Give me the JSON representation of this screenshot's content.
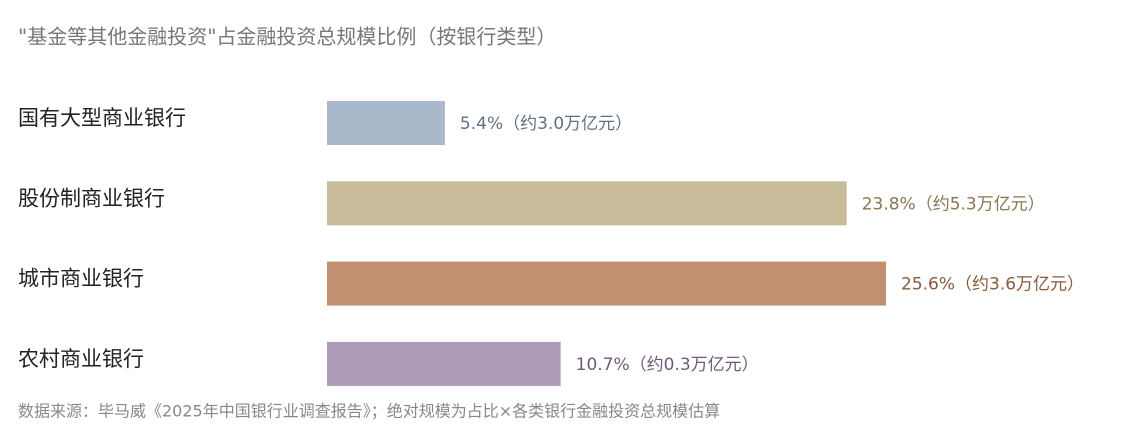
{
  "chart_data": {
    "type": "bar",
    "orientation": "horizontal",
    "title": "\"基金等其他金融投资\"占金融投资总规模比例（按银行类型）",
    "categories": [
      "国有大型商业银行",
      "股份制商业银行",
      "城市商业银行",
      "农村商业银行"
    ],
    "values": [
      5.4,
      23.8,
      25.6,
      10.7
    ],
    "value_labels": [
      "5.4%（约3.0万亿元）",
      "23.8%（约5.3万亿元）",
      "25.6%（约3.6万亿元）",
      "10.7%（约0.3万亿元）"
    ],
    "colors": [
      "#a9b8cb",
      "#c7bb9a",
      "#c19170",
      "#ae9bb7"
    ],
    "label_colors": [
      "#5f6f85",
      "#8a7650",
      "#8a5a3a",
      "#6f5a7a"
    ],
    "note": "数据来源：毕马威《2025年中国银行业调查报告》；绝对规模为占比×各类银行金融投资总规模估算"
  }
}
